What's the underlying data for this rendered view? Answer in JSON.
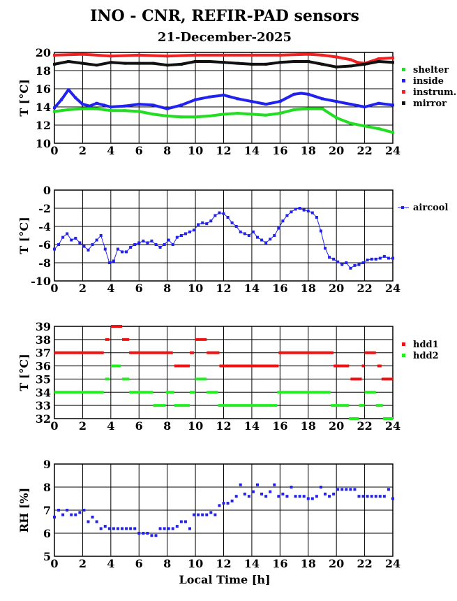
{
  "title": "INO - CNR, REFIR-PAD sensors",
  "subtitle": "21-December-2025",
  "xlabel": "Local Time [h]",
  "chart_data": [
    {
      "type": "scatter",
      "ylabel": "T [°C]",
      "xlim": [
        0,
        24
      ],
      "ylim": [
        10,
        20
      ],
      "xticks": [
        0,
        2,
        4,
        6,
        8,
        10,
        12,
        14,
        16,
        18,
        20,
        22,
        24
      ],
      "yticks": [
        10,
        12,
        14,
        16,
        18,
        20
      ],
      "grid": true,
      "legend_position": "right",
      "series": [
        {
          "name": "shelter",
          "color": "#22dd22",
          "x": [
            0,
            1,
            2,
            3,
            4,
            5,
            6,
            7,
            8,
            9,
            10,
            11,
            12,
            13,
            14,
            15,
            16,
            17,
            18,
            19,
            20,
            21,
            22,
            23,
            24
          ],
          "y": [
            13.5,
            13.7,
            13.8,
            13.8,
            13.6,
            13.6,
            13.5,
            13.2,
            13.0,
            12.9,
            12.9,
            13.0,
            13.2,
            13.3,
            13.2,
            13.1,
            13.3,
            13.7,
            13.8,
            13.8,
            12.8,
            12.2,
            11.9,
            11.6,
            11.2
          ]
        },
        {
          "name": "inside",
          "color": "#2222ee",
          "x": [
            0,
            0.5,
            1,
            1.5,
            2,
            2.5,
            3,
            3.5,
            4,
            5,
            6,
            7,
            8,
            9,
            10,
            11,
            12,
            13,
            14,
            15,
            16,
            17,
            17.5,
            18,
            19,
            20,
            21,
            22,
            23,
            24
          ],
          "y": [
            13.9,
            14.8,
            15.9,
            15.0,
            14.3,
            14.1,
            14.4,
            14.2,
            14.0,
            14.1,
            14.3,
            14.2,
            13.8,
            14.2,
            14.8,
            15.1,
            15.3,
            14.9,
            14.6,
            14.3,
            14.6,
            15.4,
            15.5,
            15.4,
            14.9,
            14.6,
            14.3,
            14.0,
            14.4,
            14.2
          ]
        },
        {
          "name": "instrum.",
          "color": "#ee2222",
          "x": [
            0,
            2,
            4,
            6,
            8,
            10,
            12,
            14,
            16,
            18,
            19,
            20,
            21,
            21.5,
            22,
            23,
            24
          ],
          "y": [
            19.7,
            19.8,
            19.6,
            19.7,
            19.6,
            19.7,
            19.7,
            19.7,
            19.7,
            19.8,
            19.7,
            19.5,
            19.2,
            18.9,
            18.8,
            19.3,
            19.4
          ]
        },
        {
          "name": "mirror",
          "color": "#111111",
          "x": [
            0,
            1,
            2,
            3,
            4,
            5,
            6,
            7,
            8,
            9,
            10,
            11,
            12,
            13,
            14,
            15,
            16,
            17,
            18,
            19,
            20,
            21,
            22,
            23,
            24
          ],
          "y": [
            18.7,
            19.0,
            18.8,
            18.6,
            18.9,
            18.8,
            18.8,
            18.8,
            18.6,
            18.7,
            19.0,
            19.0,
            18.9,
            18.8,
            18.7,
            18.7,
            18.9,
            19.0,
            19.0,
            18.7,
            18.4,
            18.5,
            18.7,
            19.0,
            18.9
          ]
        }
      ]
    },
    {
      "type": "line",
      "ylabel": "T [°C]",
      "xlim": [
        0,
        24
      ],
      "ylim": [
        -10,
        0
      ],
      "xticks": [
        0,
        2,
        4,
        6,
        8,
        10,
        12,
        14,
        16,
        18,
        20,
        22,
        24
      ],
      "yticks": [
        -10,
        -8,
        -6,
        -4,
        -2,
        0
      ],
      "grid": true,
      "legend_position": "right",
      "series": [
        {
          "name": "aircool",
          "color": "#2222ee",
          "x": [
            0,
            0.3,
            0.6,
            0.9,
            1.2,
            1.5,
            1.8,
            2.1,
            2.4,
            2.7,
            3.0,
            3.3,
            3.6,
            3.9,
            4.2,
            4.5,
            4.8,
            5.1,
            5.4,
            5.7,
            6.0,
            6.3,
            6.6,
            6.9,
            7.2,
            7.5,
            7.8,
            8.1,
            8.4,
            8.7,
            9.0,
            9.3,
            9.6,
            9.9,
            10.2,
            10.5,
            10.8,
            11.1,
            11.4,
            11.7,
            12.0,
            12.3,
            12.6,
            12.9,
            13.2,
            13.5,
            13.8,
            14.1,
            14.4,
            14.7,
            15.0,
            15.3,
            15.6,
            15.9,
            16.2,
            16.5,
            16.8,
            17.1,
            17.4,
            17.7,
            18.0,
            18.3,
            18.6,
            18.9,
            19.2,
            19.5,
            19.8,
            20.1,
            20.4,
            20.7,
            21.0,
            21.3,
            21.6,
            21.9,
            22.2,
            22.5,
            22.8,
            23.1,
            23.4,
            23.7,
            24.0
          ],
          "y": [
            -6.5,
            -6.0,
            -5.2,
            -4.8,
            -5.5,
            -5.3,
            -5.8,
            -6.2,
            -6.6,
            -6.0,
            -5.5,
            -5.0,
            -6.5,
            -8.0,
            -7.8,
            -6.5,
            -6.8,
            -6.8,
            -6.3,
            -6.0,
            -5.8,
            -5.6,
            -5.8,
            -5.6,
            -6.0,
            -6.3,
            -6.0,
            -5.5,
            -6.0,
            -5.2,
            -5.0,
            -4.8,
            -4.6,
            -4.4,
            -3.8,
            -3.6,
            -3.7,
            -3.4,
            -2.8,
            -2.5,
            -2.6,
            -3.0,
            -3.6,
            -4.0,
            -4.6,
            -4.8,
            -5.0,
            -4.6,
            -5.2,
            -5.5,
            -5.8,
            -5.4,
            -5.0,
            -4.2,
            -3.4,
            -2.8,
            -2.4,
            -2.1,
            -2.0,
            -2.2,
            -2.3,
            -2.5,
            -3.0,
            -4.5,
            -6.4,
            -7.4,
            -7.6,
            -7.9,
            -8.2,
            -8.0,
            -8.6,
            -8.3,
            -8.2,
            -8.0,
            -7.7,
            -7.6,
            -7.6,
            -7.5,
            -7.3,
            -7.5,
            -7.5
          ]
        }
      ]
    },
    {
      "type": "scatter",
      "ylabel": "T [°C]",
      "xlim": [
        0,
        24
      ],
      "ylim": [
        32,
        39
      ],
      "xticks": [
        0,
        2,
        4,
        6,
        8,
        10,
        12,
        14,
        16,
        18,
        20,
        22,
        24
      ],
      "yticks": [
        32,
        33,
        34,
        35,
        36,
        37,
        38,
        39
      ],
      "grid": true,
      "legend_position": "right",
      "series": [
        {
          "name": "hdd1",
          "color": "#ee1111",
          "segments": [
            {
              "x0": 0,
              "x1": 3.5,
              "y": 37
            },
            {
              "x0": 3.6,
              "x1": 3.9,
              "y": 38
            },
            {
              "x0": 4.0,
              "x1": 4.8,
              "y": 39
            },
            {
              "x0": 4.8,
              "x1": 5.3,
              "y": 38
            },
            {
              "x0": 5.3,
              "x1": 8.4,
              "y": 37
            },
            {
              "x0": 8.5,
              "x1": 9.6,
              "y": 36
            },
            {
              "x0": 9.6,
              "x1": 9.9,
              "y": 37
            },
            {
              "x0": 10.0,
              "x1": 10.8,
              "y": 38
            },
            {
              "x0": 10.8,
              "x1": 11.7,
              "y": 37
            },
            {
              "x0": 11.7,
              "x1": 15.9,
              "y": 36
            },
            {
              "x0": 15.9,
              "x1": 19.8,
              "y": 37
            },
            {
              "x0": 19.8,
              "x1": 20.9,
              "y": 36
            },
            {
              "x0": 21.0,
              "x1": 21.8,
              "y": 35
            },
            {
              "x0": 21.8,
              "x1": 22.0,
              "y": 36
            },
            {
              "x0": 22.0,
              "x1": 22.8,
              "y": 37
            },
            {
              "x0": 22.9,
              "x1": 23.2,
              "y": 36
            },
            {
              "x0": 23.2,
              "x1": 24,
              "y": 35
            }
          ]
        },
        {
          "name": "hdd2",
          "color": "#22ee22",
          "segments": [
            {
              "x0": 0,
              "x1": 3.5,
              "y": 34
            },
            {
              "x0": 3.6,
              "x1": 3.9,
              "y": 35
            },
            {
              "x0": 4.0,
              "x1": 4.7,
              "y": 36
            },
            {
              "x0": 4.8,
              "x1": 5.3,
              "y": 35
            },
            {
              "x0": 5.3,
              "x1": 7.0,
              "y": 34
            },
            {
              "x0": 7.0,
              "x1": 7.9,
              "y": 33
            },
            {
              "x0": 7.9,
              "x1": 8.5,
              "y": 34
            },
            {
              "x0": 8.5,
              "x1": 9.6,
              "y": 33
            },
            {
              "x0": 9.6,
              "x1": 10.0,
              "y": 34
            },
            {
              "x0": 10.0,
              "x1": 10.8,
              "y": 35
            },
            {
              "x0": 10.8,
              "x1": 11.6,
              "y": 34
            },
            {
              "x0": 11.6,
              "x1": 15.8,
              "y": 33
            },
            {
              "x0": 15.8,
              "x1": 19.6,
              "y": 34
            },
            {
              "x0": 19.6,
              "x1": 20.9,
              "y": 33
            },
            {
              "x0": 20.9,
              "x1": 21.6,
              "y": 32
            },
            {
              "x0": 21.6,
              "x1": 22.0,
              "y": 33
            },
            {
              "x0": 22.0,
              "x1": 22.8,
              "y": 34
            },
            {
              "x0": 22.8,
              "x1": 23.3,
              "y": 33
            },
            {
              "x0": 23.3,
              "x1": 24,
              "y": 32
            }
          ]
        }
      ]
    },
    {
      "type": "scatter",
      "ylabel": "RH [%]",
      "xlim": [
        0,
        24
      ],
      "ylim": [
        5,
        9
      ],
      "xticks": [
        0,
        2,
        4,
        6,
        8,
        10,
        12,
        14,
        16,
        18,
        20,
        22,
        24
      ],
      "yticks": [
        5,
        6,
        7,
        8,
        9
      ],
      "grid": true,
      "series": [
        {
          "name": "RH",
          "color": "#2222ee",
          "x": [
            0,
            0.3,
            0.6,
            0.9,
            1.2,
            1.5,
            1.8,
            2.1,
            2.4,
            2.7,
            3.0,
            3.3,
            3.6,
            3.9,
            4.2,
            4.5,
            4.8,
            5.1,
            5.4,
            5.7,
            6.0,
            6.3,
            6.6,
            6.9,
            7.2,
            7.5,
            7.8,
            8.1,
            8.4,
            8.7,
            9.0,
            9.3,
            9.6,
            9.9,
            10.2,
            10.5,
            10.8,
            11.1,
            11.4,
            11.7,
            12.0,
            12.3,
            12.6,
            12.9,
            13.2,
            13.5,
            13.8,
            14.1,
            14.4,
            14.7,
            15.0,
            15.3,
            15.6,
            15.9,
            16.2,
            16.5,
            16.8,
            17.1,
            17.4,
            17.7,
            18.0,
            18.3,
            18.6,
            18.9,
            19.2,
            19.5,
            19.8,
            20.1,
            20.4,
            20.7,
            21.0,
            21.3,
            21.6,
            21.9,
            22.2,
            22.5,
            22.8,
            23.1,
            23.4,
            23.7,
            24.0
          ],
          "y": [
            6.7,
            7.0,
            6.8,
            7.0,
            6.8,
            6.8,
            6.9,
            7.0,
            6.5,
            6.7,
            6.5,
            6.2,
            6.3,
            6.2,
            6.2,
            6.2,
            6.2,
            6.2,
            6.2,
            6.2,
            6.0,
            6.0,
            6.0,
            5.9,
            5.9,
            6.2,
            6.2,
            6.2,
            6.2,
            6.3,
            6.5,
            6.5,
            6.2,
            6.8,
            6.8,
            6.8,
            6.8,
            6.9,
            6.8,
            7.2,
            7.3,
            7.3,
            7.4,
            7.6,
            8.1,
            7.7,
            7.6,
            7.8,
            8.1,
            7.7,
            7.6,
            7.8,
            8.1,
            7.6,
            7.7,
            7.6,
            8.0,
            7.6,
            7.6,
            7.6,
            7.5,
            7.5,
            7.6,
            8.0,
            7.7,
            7.6,
            7.7,
            7.9,
            7.9,
            7.9,
            7.9,
            7.9,
            7.6,
            7.6,
            7.6,
            7.6,
            7.6,
            7.6,
            7.6,
            7.9,
            7.5
          ]
        }
      ]
    }
  ]
}
